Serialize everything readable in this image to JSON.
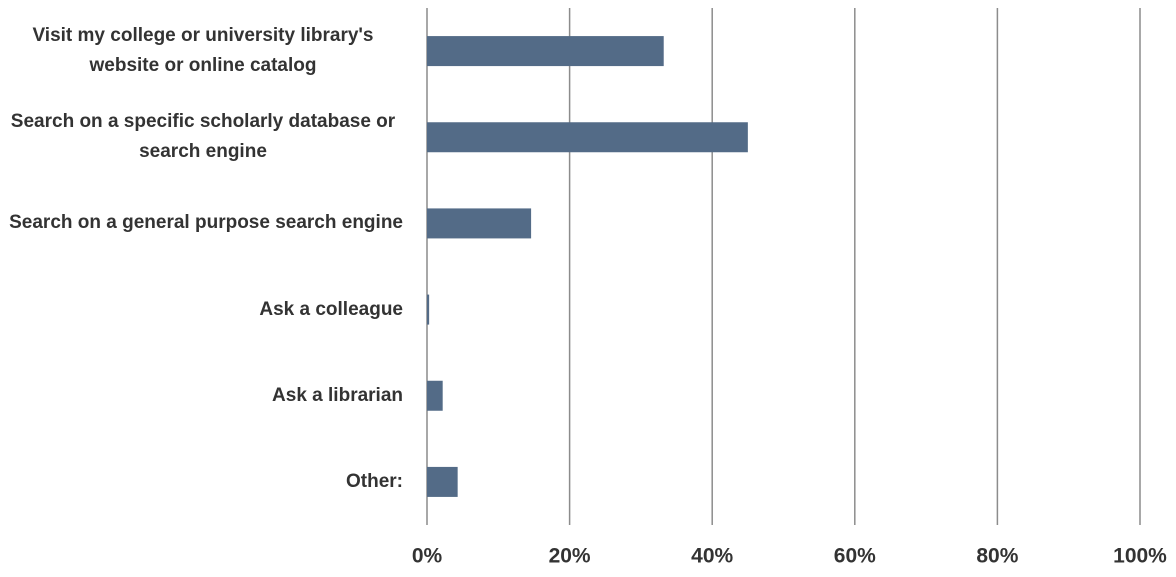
{
  "chart_data": {
    "type": "barh",
    "categories": [
      "Visit my college or university library's website or online catalog",
      "Search on a specific scholarly database or search engine",
      "Search on a general purpose search engine",
      "Ask a colleague",
      "Ask a librarian",
      "Other:"
    ],
    "values": [
      33.2,
      45.0,
      14.6,
      0.3,
      2.2,
      4.3
    ],
    "color": "#536b87",
    "xlim": [
      0,
      100
    ],
    "xticks": [
      {
        "value": 0,
        "label": "0%"
      },
      {
        "value": 20,
        "label": "20%"
      },
      {
        "value": 40,
        "label": "40%"
      },
      {
        "value": 60,
        "label": "60%"
      },
      {
        "value": 80,
        "label": "80%"
      },
      {
        "value": 100,
        "label": "100%"
      }
    ],
    "grid": true
  }
}
